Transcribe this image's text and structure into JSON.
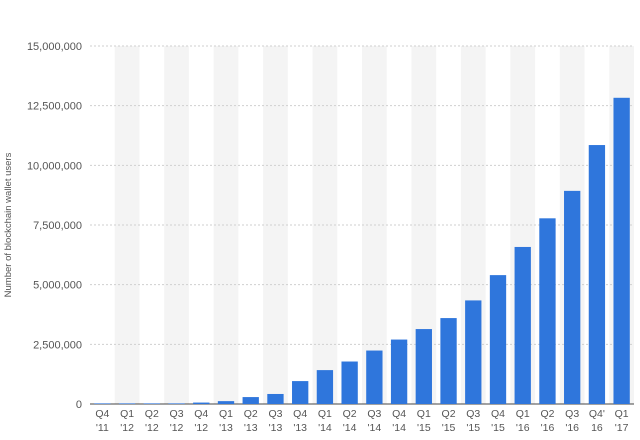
{
  "chart_data": {
    "type": "bar",
    "ylabel": "Number of blockchain wallet users",
    "ylim": [
      0,
      15000000
    ],
    "yticks": [
      0,
      2500000,
      5000000,
      7500000,
      10000000,
      12500000,
      15000000
    ],
    "ytick_labels": [
      "0",
      "2,500,000",
      "5,000,000",
      "7,500,000",
      "10,000,000",
      "12,500,000",
      "15,000,000"
    ],
    "grid": true,
    "bar_color": "#2f76dc",
    "categories": [
      [
        "Q4",
        "'11"
      ],
      [
        "Q1",
        "'12"
      ],
      [
        "Q2",
        "'12"
      ],
      [
        "Q3",
        "'12"
      ],
      [
        "Q4",
        "'12"
      ],
      [
        "Q1",
        "'13"
      ],
      [
        "Q2",
        "'13"
      ],
      [
        "Q3",
        "'13"
      ],
      [
        "Q4",
        "'13"
      ],
      [
        "Q1",
        "'14"
      ],
      [
        "Q2",
        "'14"
      ],
      [
        "Q3",
        "'14"
      ],
      [
        "Q4",
        "'14"
      ],
      [
        "Q1",
        "'15"
      ],
      [
        "Q2",
        "'15"
      ],
      [
        "Q3",
        "'15"
      ],
      [
        "Q4",
        "'15"
      ],
      [
        "Q1",
        "'16"
      ],
      [
        "Q2",
        "'16"
      ],
      [
        "Q3",
        "'16"
      ],
      [
        "Q4'",
        "16"
      ],
      [
        "Q1",
        "'17"
      ]
    ],
    "values": [
      10000,
      15000,
      20000,
      25000,
      60000,
      120000,
      290000,
      420000,
      960000,
      1420000,
      1780000,
      2240000,
      2700000,
      3140000,
      3600000,
      4340000,
      5400000,
      6580000,
      7780000,
      8930000,
      10850000,
      12830000
    ]
  }
}
